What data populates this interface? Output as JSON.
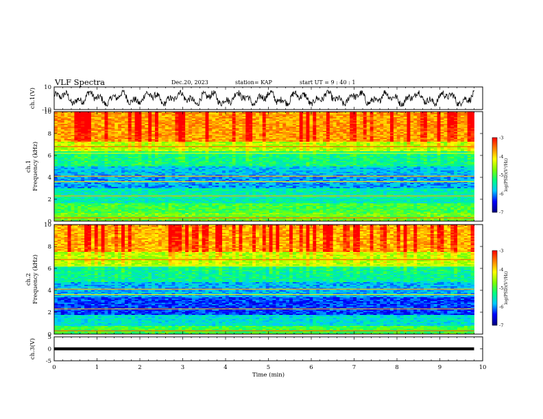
{
  "header": {
    "title": "VLF Spectra",
    "date": "Dec.20, 2023",
    "station": "station= KAP",
    "start_time": "start  UT  =   9 : 40 : 1"
  },
  "chart_data": [
    {
      "type": "line",
      "panel": "ch1-waveform",
      "ylabel": "ch.1(V)",
      "ylim": [
        -10,
        10
      ],
      "yticks": [
        "10",
        "-10"
      ],
      "xlim": [
        0,
        10
      ],
      "x_extent_min": 9.8,
      "note_level_range": [
        -7,
        7
      ]
    },
    {
      "type": "heatmap",
      "panel": "ch1-spectrogram",
      "ylabel": "ch.1\nFrequency (kHz)",
      "ylim": [
        0,
        10
      ],
      "yticks": [
        "0",
        "2",
        "4",
        "6",
        "8",
        "10"
      ],
      "xlim": [
        0,
        10
      ],
      "x_extent_min": 9.8,
      "colorbar": {
        "label": "log(PSD)(V²/Hz)",
        "range": [
          -7,
          -3
        ],
        "ticks": [
          "-3",
          "-4",
          "-5",
          "-6",
          "-7"
        ]
      }
    },
    {
      "type": "heatmap",
      "panel": "ch2-spectrogram",
      "ylabel": "ch.2\nFrequency (kHz)",
      "ylim": [
        0,
        10
      ],
      "yticks": [
        "0",
        "2",
        "4",
        "6",
        "8",
        "10"
      ],
      "xlim": [
        0,
        10
      ],
      "x_extent_min": 9.8,
      "colorbar": {
        "label": "log(PSD)(V²/Hz)",
        "range": [
          -7,
          -3
        ],
        "ticks": [
          "-3",
          "-4",
          "-5",
          "-6",
          "-7"
        ]
      }
    },
    {
      "type": "line",
      "panel": "ch3-waveform",
      "ylabel": "ch.3(V)",
      "ylim": [
        -5,
        5
      ],
      "yticks": [
        "5",
        "0",
        "-5"
      ],
      "xlim": [
        0,
        10
      ],
      "xlabel": "Time (min)",
      "xticks": [
        "0",
        "1",
        "2",
        "3",
        "4",
        "5",
        "6",
        "7",
        "8",
        "9",
        "10"
      ],
      "x_extent_min": 9.8,
      "band_level_range": [
        -0.6,
        0.6
      ]
    }
  ],
  "colors": {
    "colormap": [
      "#000080",
      "#0000ff",
      "#00c8ff",
      "#00ff80",
      "#80ff00",
      "#ffff00",
      "#ff8000",
      "#ff0000"
    ],
    "axes": "#000000",
    "waveform": "#000000"
  }
}
